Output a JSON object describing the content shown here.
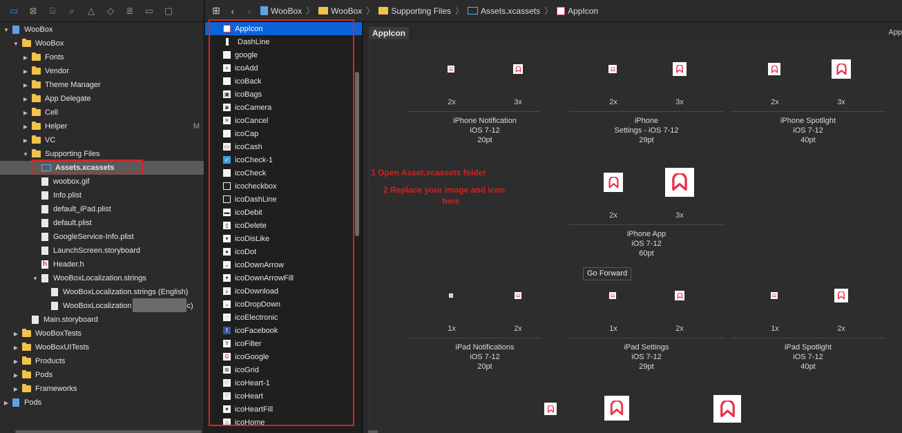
{
  "navigator": {
    "items": [
      {
        "label": "WooBox",
        "depth": 0,
        "kind": "project",
        "open": true
      },
      {
        "label": "WooBox",
        "depth": 1,
        "kind": "folder",
        "open": true
      },
      {
        "label": "Fonts",
        "depth": 2,
        "kind": "folder"
      },
      {
        "label": "Vendor",
        "depth": 2,
        "kind": "folder"
      },
      {
        "label": "Theme Manager",
        "depth": 2,
        "kind": "folder"
      },
      {
        "label": "App Delegate",
        "depth": 2,
        "kind": "folder"
      },
      {
        "label": "Cell",
        "depth": 2,
        "kind": "folder"
      },
      {
        "label": "Helper",
        "depth": 2,
        "kind": "folder",
        "badge": "M"
      },
      {
        "label": "VC",
        "depth": 2,
        "kind": "folder"
      },
      {
        "label": "Supporting Files",
        "depth": 2,
        "kind": "folder",
        "open": true
      },
      {
        "label": "Assets.xcassets",
        "depth": 3,
        "kind": "assets",
        "selected": true
      },
      {
        "label": "woobox.gif",
        "depth": 3,
        "kind": "file"
      },
      {
        "label": "Info.plist",
        "depth": 3,
        "kind": "file"
      },
      {
        "label": "default_iPad.plist",
        "depth": 3,
        "kind": "file"
      },
      {
        "label": "default.plist",
        "depth": 3,
        "kind": "file"
      },
      {
        "label": "GoogleService-Info.plist",
        "depth": 3,
        "kind": "file"
      },
      {
        "label": "LaunchScreen.storyboard",
        "depth": 3,
        "kind": "file"
      },
      {
        "label": "Header.h",
        "depth": 3,
        "kind": "header"
      },
      {
        "label": "WooBoxLocalization.strings",
        "depth": 3,
        "kind": "file",
        "open": true
      },
      {
        "label": "WooBoxLocalization.strings (English)",
        "depth": 4,
        "kind": "file"
      },
      {
        "label": "WooBoxLocalization",
        "suffix": "c)",
        "depth": 4,
        "kind": "file",
        "redacted": true
      },
      {
        "label": "Main.storyboard",
        "depth": 2,
        "kind": "file"
      },
      {
        "label": "WooBoxTests",
        "depth": 1,
        "kind": "folder"
      },
      {
        "label": "WooBoxUITests",
        "depth": 1,
        "kind": "folder"
      },
      {
        "label": "Products",
        "depth": 1,
        "kind": "folder"
      },
      {
        "label": "Pods",
        "depth": 1,
        "kind": "folder"
      },
      {
        "label": "Frameworks",
        "depth": 1,
        "kind": "folder"
      },
      {
        "label": "Pods",
        "depth": 0,
        "kind": "project"
      }
    ]
  },
  "jumpbar": {
    "crumbs": [
      "WooBox",
      "WooBox",
      "Supporting Files",
      "Assets.xcassets",
      "AppIcon"
    ]
  },
  "asset_list": [
    {
      "label": "AppIcon",
      "thumb": "appicon",
      "selected": true
    },
    {
      "label": "DashLine",
      "thumb": "line"
    },
    {
      "label": "google",
      "thumb": "plain"
    },
    {
      "label": "icoAdd",
      "thumb": "plain",
      "glyph": "+"
    },
    {
      "label": "icoBack",
      "thumb": "plain"
    },
    {
      "label": "icoBags",
      "thumb": "plain",
      "glyph": "▣"
    },
    {
      "label": "icoCamera",
      "thumb": "plain",
      "glyph": "◙"
    },
    {
      "label": "icoCancel",
      "thumb": "plain",
      "glyph": "✕"
    },
    {
      "label": "icoCap",
      "thumb": "plain"
    },
    {
      "label": "icoCash",
      "thumb": "plain",
      "glyph": "▭"
    },
    {
      "label": "icoCheck-1",
      "thumb": "check",
      "glyph": "✓"
    },
    {
      "label": "icoCheck",
      "thumb": "plain"
    },
    {
      "label": "icocheckbox",
      "thumb": "dark"
    },
    {
      "label": "icoDashLine",
      "thumb": "dark"
    },
    {
      "label": "icoDebit",
      "thumb": "plain",
      "glyph": "▬"
    },
    {
      "label": "icoDelete",
      "thumb": "plain",
      "glyph": "▯"
    },
    {
      "label": "icoDisLike",
      "thumb": "plain",
      "glyph": "▾"
    },
    {
      "label": "icoDot",
      "thumb": "plain",
      "glyph": "●"
    },
    {
      "label": "icoDownArrow",
      "thumb": "plain",
      "glyph": "⌄"
    },
    {
      "label": "icoDownArrowFill",
      "thumb": "plain",
      "glyph": "▾"
    },
    {
      "label": "icoDownload",
      "thumb": "plain",
      "glyph": "⇣"
    },
    {
      "label": "icoDropDown",
      "thumb": "plain",
      "glyph": "⌄"
    },
    {
      "label": "icoElectronic",
      "thumb": "plain",
      "glyph": "◌"
    },
    {
      "label": "icoFacebook",
      "thumb": "fb",
      "glyph": "f"
    },
    {
      "label": "icoFilter",
      "thumb": "plain",
      "glyph": "Y"
    },
    {
      "label": "icoGoogle",
      "thumb": "g",
      "glyph": "G"
    },
    {
      "label": "icoGrid",
      "thumb": "plain",
      "glyph": "⊞"
    },
    {
      "label": "icoHeart-1",
      "thumb": "plain",
      "glyph": "♡"
    },
    {
      "label": "icoHeart",
      "thumb": "plain",
      "glyph": "♡"
    },
    {
      "label": "icoHeartFill",
      "thumb": "plain",
      "glyph": "♥"
    },
    {
      "label": "icoHome",
      "thumb": "plain",
      "glyph": "⌂"
    }
  ],
  "editor": {
    "set_title": "AppIcon",
    "corner_label": "App",
    "groups": [
      {
        "name": "iPhone Notification",
        "line2": "iOS 7-12",
        "line3": "20pt",
        "scales": [
          "2x",
          "3x"
        ]
      },
      {
        "name": "iPhone",
        "line2": "Settings - iOS 7-12",
        "line3": "29pt",
        "scales": [
          "2x",
          "3x"
        ]
      },
      {
        "name": "iPhone Spotlight",
        "line2": "iOS 7-12",
        "line3": "40pt",
        "scales": [
          "2x",
          "3x"
        ]
      },
      {
        "name": "iPhone App",
        "line2": "iOS 7-12",
        "line3": "60pt",
        "scales": [
          "2x",
          "3x"
        ]
      },
      {
        "name": "iPad Notifications",
        "line2": "iOS 7-12",
        "line3": "20pt",
        "scales": [
          "1x",
          "2x"
        ]
      },
      {
        "name": "iPad Settings",
        "line2": "iOS 7-12",
        "line3": "29pt",
        "scales": [
          "1x",
          "2x"
        ]
      },
      {
        "name": "iPad Spotlight",
        "line2": "iOS 7-12",
        "line3": "40pt",
        "scales": [
          "1x",
          "2x"
        ]
      }
    ],
    "notes": {
      "step1": "1 Open Asset.xcassets folder",
      "step2a": "2 Replace your image and icon",
      "step2b": "here"
    },
    "tooltip": "Go Forward"
  },
  "colors": {
    "accent": "#0a64d8",
    "annotation": "#e02020",
    "brand": "#e8334a"
  }
}
